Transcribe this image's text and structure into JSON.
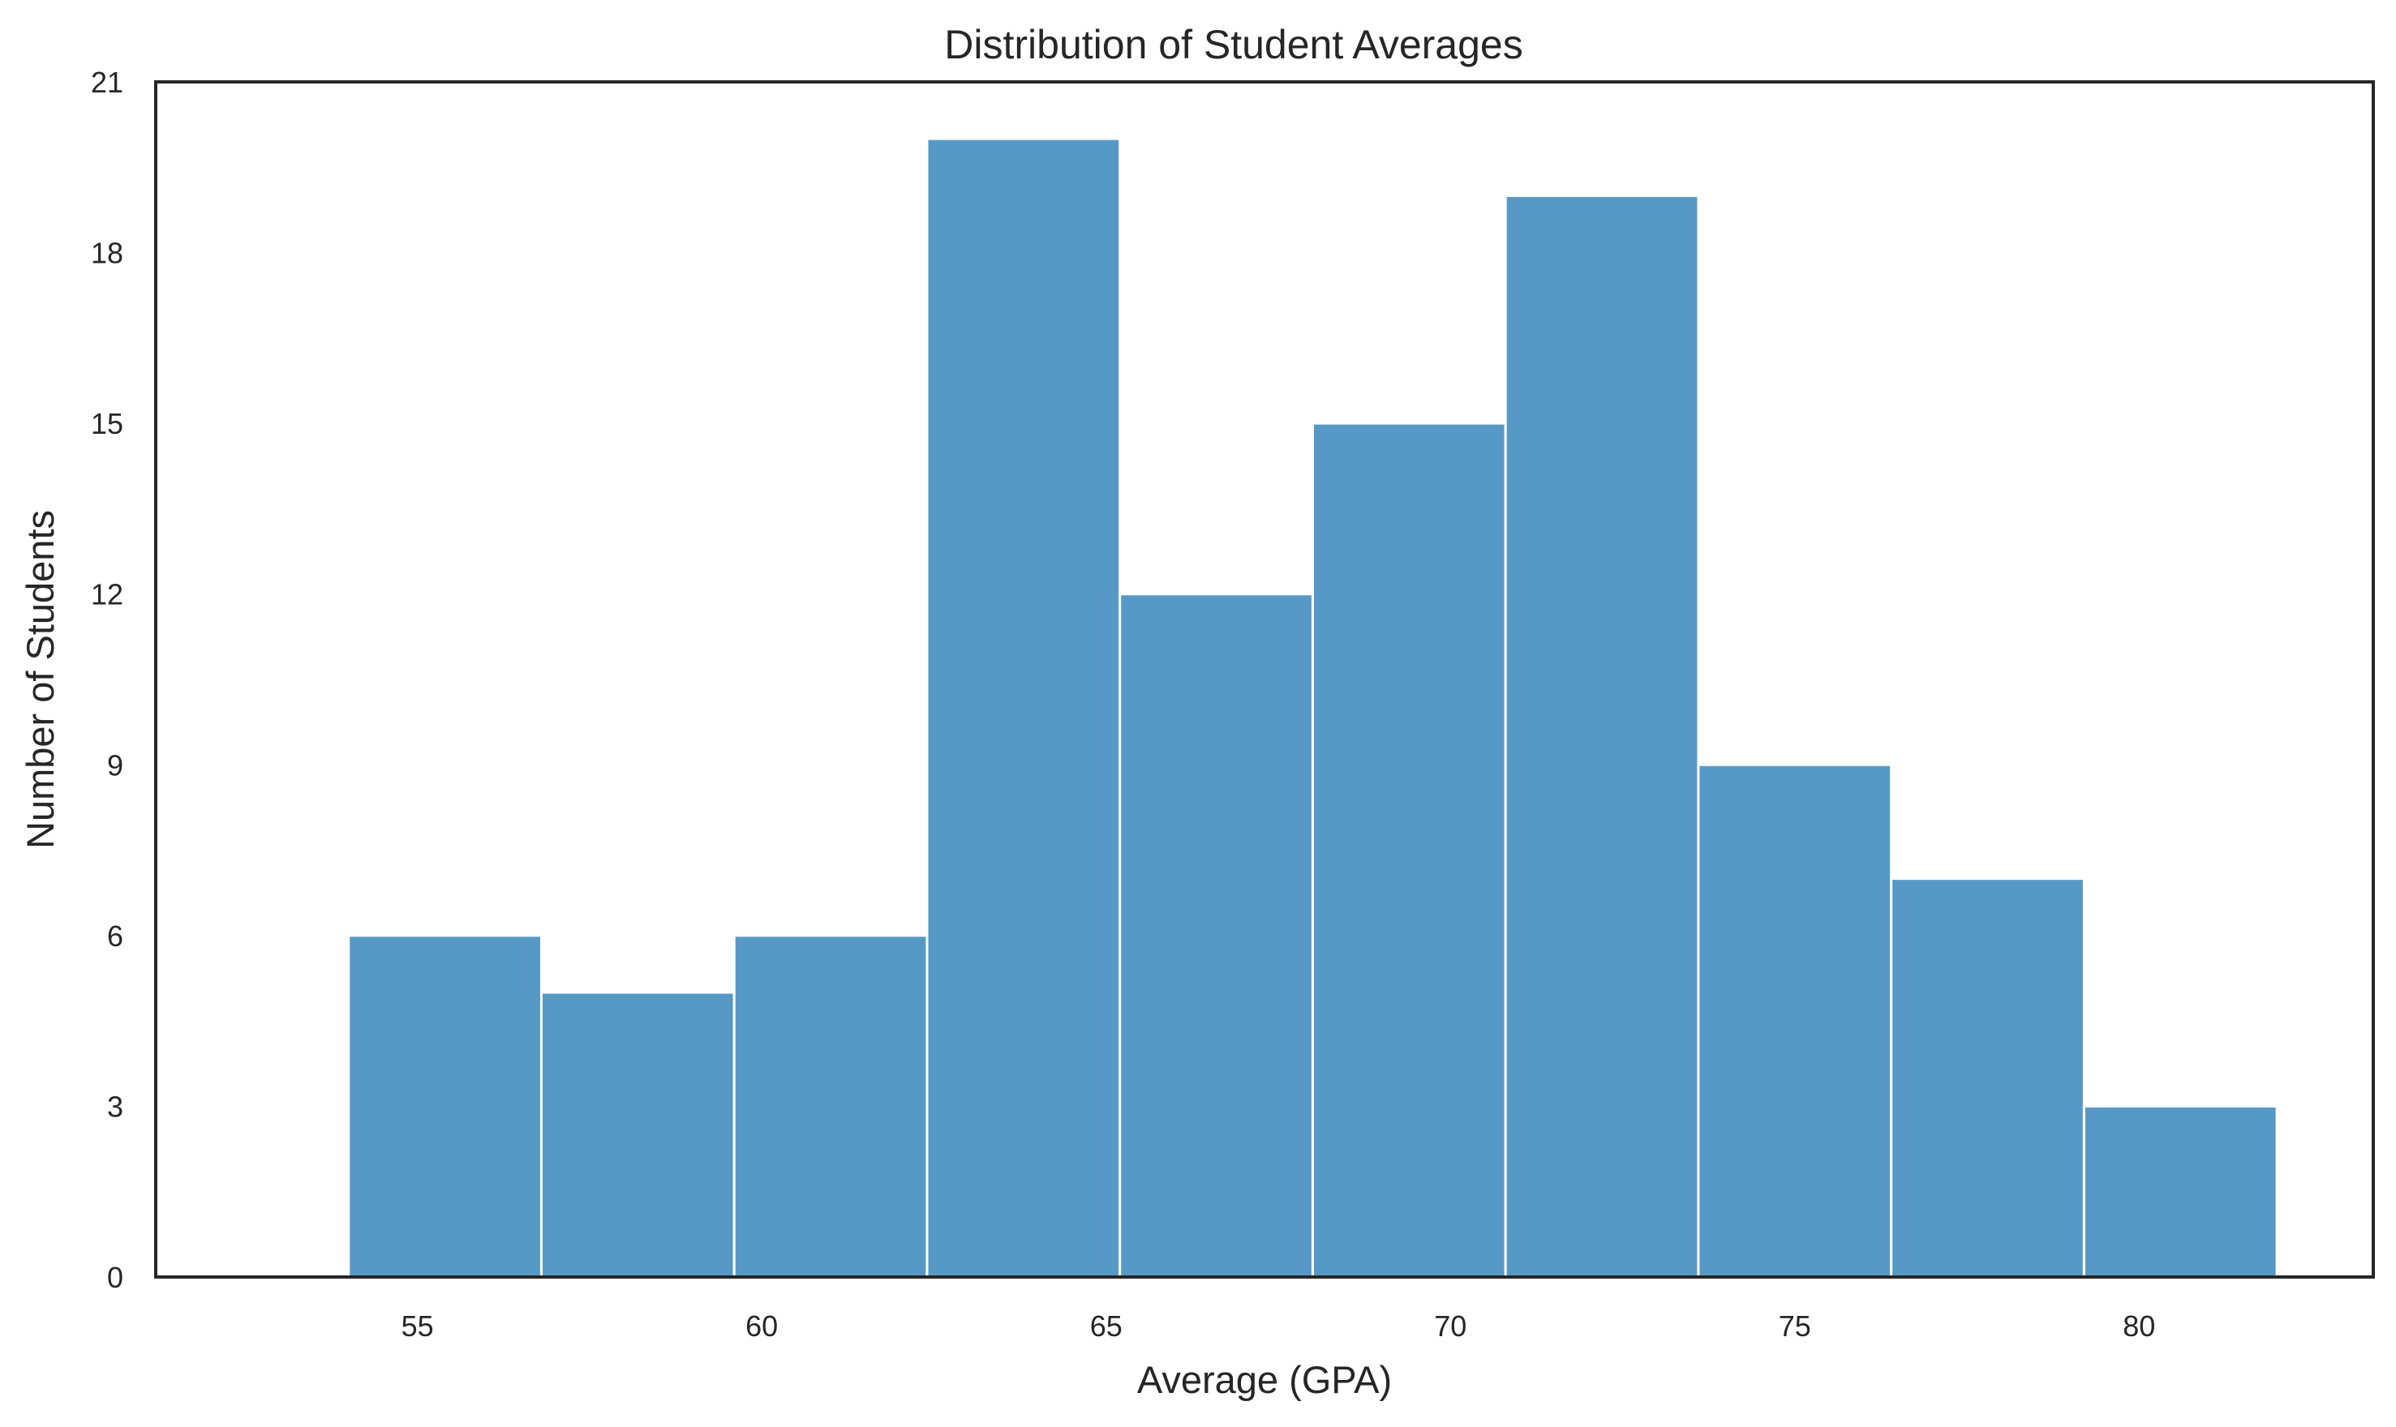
{
  "chart_data": {
    "type": "bar",
    "title": "Distribution of Student Averages",
    "xlabel": "Average (GPA)",
    "ylabel": "Number of Students",
    "xlim": [
      51.2,
      83.4
    ],
    "ylim": [
      0,
      21
    ],
    "xticks": [
      55,
      60,
      65,
      70,
      75,
      80
    ],
    "yticks": [
      0,
      3,
      6,
      9,
      12,
      15,
      18,
      21
    ],
    "bin_edges": [
      54.0,
      56.8,
      59.6,
      62.4,
      65.2,
      68.0,
      70.8,
      73.6,
      76.4,
      79.2,
      82.0
    ],
    "values": [
      6,
      5,
      6,
      20,
      12,
      15,
      19,
      9,
      7,
      3
    ],
    "bar_color": "#5799c6",
    "grid": false,
    "legend": "none"
  }
}
